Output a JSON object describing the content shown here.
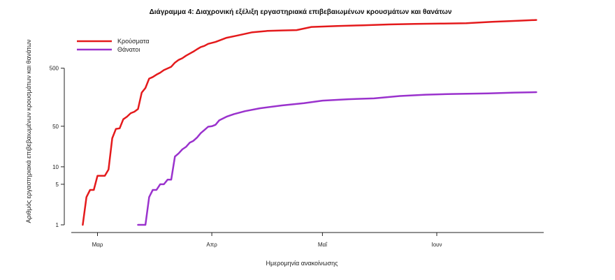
{
  "chart_data": {
    "type": "line",
    "title": "Διάγραμμα 4: Διαχρονική εξέλιξη εργαστηριακά επιβεβαιωμένων κρουσμάτων και θανάτων",
    "xlabel": "Ημερομηνία ανακοίνωσης",
    "ylabel": "Αριθμός εργαστηριακά επιβεβαιωμένων κρουσμάτων και θανάτων",
    "y_scale": "log",
    "yticks": [
      1,
      5,
      10,
      50,
      500
    ],
    "ylim": [
      1,
      3000
    ],
    "x_ticks": [
      {
        "label": "Μαρ",
        "date": "2020-03-01"
      },
      {
        "label": "Απρ",
        "date": "2020-04-01"
      },
      {
        "label": "Μαΐ",
        "date": "2020-05-01"
      },
      {
        "label": "Ιουν",
        "date": "2020-06-01"
      }
    ],
    "xlim": [
      "2020-02-21",
      "2020-06-30"
    ],
    "legend_position": "top-left",
    "series": [
      {
        "name": "Κρούσματα",
        "color": "#e41a1c",
        "points": [
          [
            "2020-02-26",
            1
          ],
          [
            "2020-02-27",
            3
          ],
          [
            "2020-02-28",
            4
          ],
          [
            "2020-02-29",
            4
          ],
          [
            "2020-03-01",
            7
          ],
          [
            "2020-03-02",
            7
          ],
          [
            "2020-03-03",
            7
          ],
          [
            "2020-03-04",
            9
          ],
          [
            "2020-03-05",
            31
          ],
          [
            "2020-03-06",
            45
          ],
          [
            "2020-03-07",
            46
          ],
          [
            "2020-03-08",
            66
          ],
          [
            "2020-03-09",
            73
          ],
          [
            "2020-03-10",
            84
          ],
          [
            "2020-03-11",
            89
          ],
          [
            "2020-03-12",
            99
          ],
          [
            "2020-03-13",
            190
          ],
          [
            "2020-03-14",
            228
          ],
          [
            "2020-03-15",
            331
          ],
          [
            "2020-03-16",
            352
          ],
          [
            "2020-03-17",
            387
          ],
          [
            "2020-03-18",
            418
          ],
          [
            "2020-03-19",
            464
          ],
          [
            "2020-03-20",
            495
          ],
          [
            "2020-03-21",
            530
          ],
          [
            "2020-03-22",
            624
          ],
          [
            "2020-03-23",
            695
          ],
          [
            "2020-03-24",
            743
          ],
          [
            "2020-03-25",
            821
          ],
          [
            "2020-03-26",
            892
          ],
          [
            "2020-03-27",
            966
          ],
          [
            "2020-03-28",
            1061
          ],
          [
            "2020-03-29",
            1156
          ],
          [
            "2020-03-30",
            1212
          ],
          [
            "2020-03-31",
            1314
          ],
          [
            "2020-04-02",
            1415
          ],
          [
            "2020-04-05",
            1673
          ],
          [
            "2020-04-08",
            1832
          ],
          [
            "2020-04-12",
            2081
          ],
          [
            "2020-04-16",
            2192
          ],
          [
            "2020-04-20",
            2235
          ],
          [
            "2020-04-24",
            2265
          ],
          [
            "2020-04-28",
            2566
          ],
          [
            "2020-05-05",
            2663
          ],
          [
            "2020-05-12",
            2744
          ],
          [
            "2020-05-19",
            2836
          ],
          [
            "2020-05-26",
            2892
          ],
          [
            "2020-06-02",
            2937
          ],
          [
            "2020-06-09",
            2980
          ],
          [
            "2020-06-16",
            3148
          ],
          [
            "2020-06-23",
            3287
          ],
          [
            "2020-06-28",
            3390
          ]
        ]
      },
      {
        "name": "Θάνατοι",
        "color": "#9a32cd",
        "points": [
          [
            "2020-03-12",
            1
          ],
          [
            "2020-03-13",
            1
          ],
          [
            "2020-03-14",
            1
          ],
          [
            "2020-03-15",
            3
          ],
          [
            "2020-03-16",
            4
          ],
          [
            "2020-03-17",
            4
          ],
          [
            "2020-03-18",
            5
          ],
          [
            "2020-03-19",
            5
          ],
          [
            "2020-03-20",
            6
          ],
          [
            "2020-03-21",
            6
          ],
          [
            "2020-03-22",
            15
          ],
          [
            "2020-03-23",
            17
          ],
          [
            "2020-03-24",
            20
          ],
          [
            "2020-03-25",
            22
          ],
          [
            "2020-03-26",
            26
          ],
          [
            "2020-03-27",
            28
          ],
          [
            "2020-03-28",
            32
          ],
          [
            "2020-03-29",
            38
          ],
          [
            "2020-03-30",
            43
          ],
          [
            "2020-03-31",
            49
          ],
          [
            "2020-04-01",
            50
          ],
          [
            "2020-04-02",
            53
          ],
          [
            "2020-04-03",
            63
          ],
          [
            "2020-04-05",
            73
          ],
          [
            "2020-04-07",
            81
          ],
          [
            "2020-04-10",
            91
          ],
          [
            "2020-04-14",
            102
          ],
          [
            "2020-04-20",
            114
          ],
          [
            "2020-04-26",
            125
          ],
          [
            "2020-05-01",
            138
          ],
          [
            "2020-05-08",
            146
          ],
          [
            "2020-05-15",
            151
          ],
          [
            "2020-05-22",
            166
          ],
          [
            "2020-05-29",
            175
          ],
          [
            "2020-06-05",
            180
          ],
          [
            "2020-06-15",
            184
          ],
          [
            "2020-06-22",
            190
          ],
          [
            "2020-06-28",
            193
          ]
        ]
      }
    ]
  }
}
